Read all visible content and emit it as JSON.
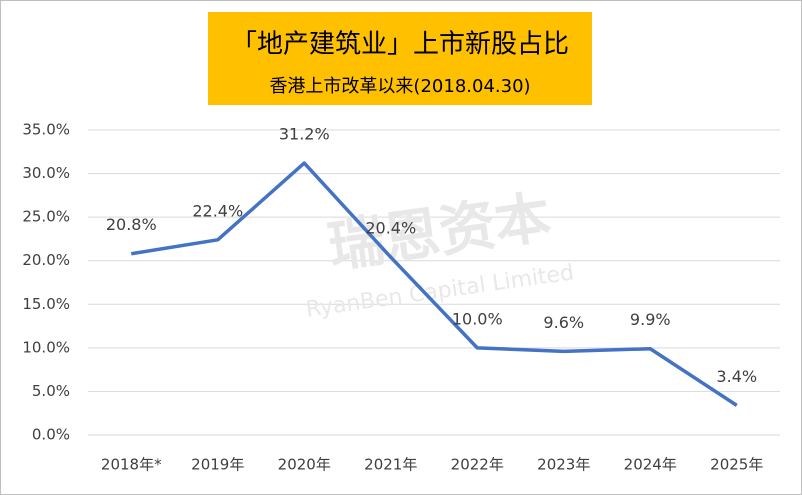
{
  "chart_data": {
    "type": "line",
    "title": "「地产建筑业」上市新股占比",
    "subtitle": "香港上市改革以来(2018.04.30)",
    "watermark": {
      "name": "瑞恩资本",
      "name_en": "RyanBen Capital Limited"
    },
    "categories": [
      "2018年*",
      "2019年",
      "2020年",
      "2021年",
      "2022年",
      "2023年",
      "2024年",
      "2025年"
    ],
    "values": [
      20.8,
      22.4,
      31.2,
      20.4,
      10.0,
      9.6,
      9.9,
      3.4
    ],
    "value_labels": [
      "20.8%",
      "22.4%",
      "31.2%",
      "20.4%",
      "10.0%",
      "9.6%",
      "9.9%",
      "3.4%"
    ],
    "color": "#4472c4",
    "ylim": [
      0,
      35
    ],
    "yticks": [
      {
        "value": 0,
        "label": "0.0%"
      },
      {
        "value": 5,
        "label": "5.0%"
      },
      {
        "value": 10,
        "label": "10.0%"
      },
      {
        "value": 15,
        "label": "15.0%"
      },
      {
        "value": 20,
        "label": "20.0%"
      },
      {
        "value": 25,
        "label": "25.0%"
      },
      {
        "value": 30,
        "label": "30.0%"
      },
      {
        "value": 35,
        "label": "35.0%"
      }
    ],
    "grid": true
  }
}
